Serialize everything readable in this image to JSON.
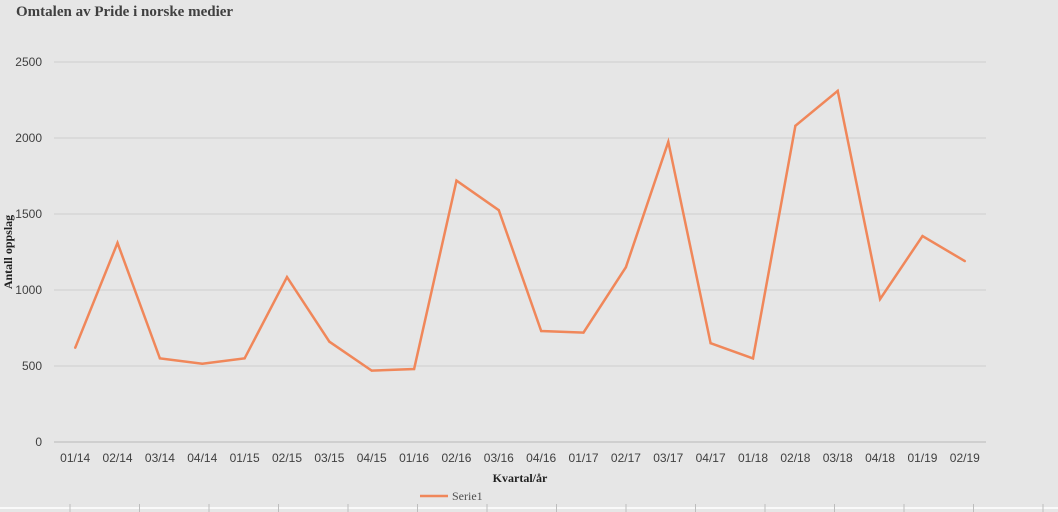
{
  "chart_data": {
    "type": "line",
    "title": "Omtalen av Pride i norske medier",
    "xlabel": "Kvartal/år",
    "ylabel": "Antall oppslag",
    "categories": [
      "01/14",
      "02/14",
      "03/14",
      "04/14",
      "01/15",
      "02/15",
      "03/15",
      "04/15",
      "01/16",
      "02/16",
      "03/16",
      "04/16",
      "01/17",
      "02/17",
      "03/17",
      "04/17",
      "01/18",
      "02/18",
      "03/18",
      "04/18",
      "01/19",
      "02/19"
    ],
    "series": [
      {
        "name": "Serie1",
        "values": [
          620,
          1310,
          550,
          515,
          550,
          1085,
          660,
          470,
          480,
          1720,
          1525,
          730,
          720,
          1150,
          1975,
          650,
          550,
          2080,
          2310,
          940,
          1355,
          1190
        ],
        "color": "#f0875a"
      }
    ],
    "ylim": [
      0,
      2500
    ],
    "yticks": [
      0,
      500,
      1000,
      1500,
      2000,
      2500
    ],
    "grid": true,
    "legend": "bottom-center"
  }
}
